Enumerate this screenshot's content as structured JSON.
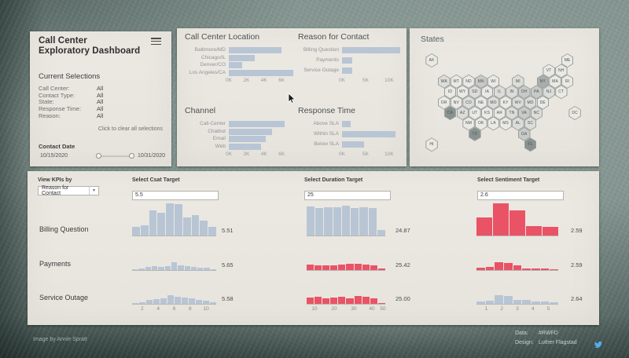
{
  "colors": {
    "bar_blue": "#b8c5d4",
    "bar_red": "#e95365",
    "twitter_blue": "#55acee",
    "hex_shades": [
      "#ebe9e4",
      "#dcdcd8",
      "#c8cac7",
      "#a9aeac",
      "#899290"
    ]
  },
  "left_panel": {
    "title_line1": "Call Center",
    "title_line2": "Exploratory Dashboard",
    "section_title": "Current Selections",
    "selections": [
      {
        "label": "Call Center:",
        "value": "All"
      },
      {
        "label": "Contact Type:",
        "value": "All"
      },
      {
        "label": "State:",
        "value": "All"
      },
      {
        "label": "Response Time:",
        "value": "All"
      },
      {
        "label": "Reason:",
        "value": "All"
      }
    ],
    "clear_text": "Click to clear all selections",
    "date_label": "Contact Date",
    "date_start": "10/15/2020",
    "date_end": "10/31/2020"
  },
  "filter_charts": [
    {
      "type": "bar",
      "title": "Call Center Location",
      "categories": [
        "Baltimore/MD",
        "Chicago/IL",
        "Denver/CO",
        "Los Angeles/CA"
      ],
      "values_k": [
        6.0,
        2.9,
        1.5,
        7.3
      ],
      "axis_max_k": 7.5,
      "ticks": [
        {
          "label": "0K",
          "value": 0
        },
        {
          "label": "2K",
          "value": 2
        },
        {
          "label": "4K",
          "value": 4
        },
        {
          "label": "6K",
          "value": 6
        }
      ]
    },
    {
      "type": "bar",
      "title": "Reason for Contact",
      "categories": [
        "Billing Question",
        "Payments",
        "Service Outage"
      ],
      "values_k": [
        12.4,
        2.2,
        2.2
      ],
      "axis_max_k": 13,
      "ticks": [
        {
          "label": "0K",
          "value": 0
        },
        {
          "label": "5K",
          "value": 5
        },
        {
          "label": "10K",
          "value": 10
        }
      ]
    },
    {
      "type": "bar",
      "title": "Channel",
      "categories": [
        "Call-Center",
        "Chatbot",
        "Email",
        "Web"
      ],
      "values_k": [
        6.3,
        4.9,
        4.2,
        3.7
      ],
      "axis_max_k": 7.5,
      "ticks": [
        {
          "label": "0K",
          "value": 0
        },
        {
          "label": "2K",
          "value": 2
        },
        {
          "label": "4K",
          "value": 4
        },
        {
          "label": "6K",
          "value": 6
        }
      ]
    },
    {
      "type": "bar",
      "title": "Response Time",
      "categories": [
        "Above SLA",
        "Within SLA",
        "Below SLA"
      ],
      "values_k": [
        1.8,
        11.4,
        4.6
      ],
      "axis_max_k": 13,
      "ticks": [
        {
          "label": "0K",
          "value": 0
        },
        {
          "label": "5K",
          "value": 5
        },
        {
          "label": "10K",
          "value": 10
        }
      ]
    }
  ],
  "states_map": {
    "title": "States",
    "hexes": [
      {
        "abbr": "AK",
        "col": 0,
        "row": 0,
        "shade": 0
      },
      {
        "abbr": "ME",
        "col": 11,
        "row": 0,
        "shade": 0
      },
      {
        "abbr": "VT",
        "col": 9.5,
        "row": 1,
        "shade": 0
      },
      {
        "abbr": "NH",
        "col": 10.5,
        "row": 1,
        "shade": 0
      },
      {
        "abbr": "WA",
        "col": 1,
        "row": 2,
        "shade": 1
      },
      {
        "abbr": "MT",
        "col": 2,
        "row": 2,
        "shade": 0
      },
      {
        "abbr": "ND",
        "col": 3,
        "row": 2,
        "shade": 0
      },
      {
        "abbr": "MN",
        "col": 4,
        "row": 2,
        "shade": 2
      },
      {
        "abbr": "WI",
        "col": 5,
        "row": 2,
        "shade": 0
      },
      {
        "abbr": "MI",
        "col": 7,
        "row": 2,
        "shade": 1
      },
      {
        "abbr": "NY",
        "col": 9,
        "row": 2,
        "shade": 3
      },
      {
        "abbr": "MA",
        "col": 10,
        "row": 2,
        "shade": 0
      },
      {
        "abbr": "RI",
        "col": 11,
        "row": 2,
        "shade": 0
      },
      {
        "abbr": "ID",
        "col": 1.5,
        "row": 3,
        "shade": 0
      },
      {
        "abbr": "WY",
        "col": 2.5,
        "row": 3,
        "shade": 0
      },
      {
        "abbr": "SD",
        "col": 3.5,
        "row": 3,
        "shade": 1
      },
      {
        "abbr": "IA",
        "col": 4.5,
        "row": 3,
        "shade": 0
      },
      {
        "abbr": "IL",
        "col": 5.5,
        "row": 3,
        "shade": 1
      },
      {
        "abbr": "IN",
        "col": 6.5,
        "row": 3,
        "shade": 1
      },
      {
        "abbr": "OH",
        "col": 7.5,
        "row": 3,
        "shade": 2
      },
      {
        "abbr": "PA",
        "col": 8.5,
        "row": 3,
        "shade": 2
      },
      {
        "abbr": "NJ",
        "col": 9.5,
        "row": 3,
        "shade": 1
      },
      {
        "abbr": "CT",
        "col": 10.5,
        "row": 3,
        "shade": 0
      },
      {
        "abbr": "OR",
        "col": 1,
        "row": 4,
        "shade": 0
      },
      {
        "abbr": "NV",
        "col": 2,
        "row": 4,
        "shade": 0
      },
      {
        "abbr": "CO",
        "col": 3,
        "row": 4,
        "shade": 1
      },
      {
        "abbr": "NE",
        "col": 4,
        "row": 4,
        "shade": 0
      },
      {
        "abbr": "MO",
        "col": 5,
        "row": 4,
        "shade": 1
      },
      {
        "abbr": "KY",
        "col": 6,
        "row": 4,
        "shade": 0
      },
      {
        "abbr": "WV",
        "col": 7,
        "row": 4,
        "shade": 1
      },
      {
        "abbr": "MD",
        "col": 8,
        "row": 4,
        "shade": 1
      },
      {
        "abbr": "DE",
        "col": 9,
        "row": 4,
        "shade": 0
      },
      {
        "abbr": "CA",
        "col": 1.5,
        "row": 5,
        "shade": 4
      },
      {
        "abbr": "AZ",
        "col": 2.5,
        "row": 5,
        "shade": 1
      },
      {
        "abbr": "UT",
        "col": 3.5,
        "row": 5,
        "shade": 0
      },
      {
        "abbr": "KS",
        "col": 4.5,
        "row": 5,
        "shade": 0
      },
      {
        "abbr": "AR",
        "col": 5.5,
        "row": 5,
        "shade": 0
      },
      {
        "abbr": "TN",
        "col": 6.5,
        "row": 5,
        "shade": 1
      },
      {
        "abbr": "VA",
        "col": 7.5,
        "row": 5,
        "shade": 2
      },
      {
        "abbr": "NC",
        "col": 8.5,
        "row": 5,
        "shade": 1
      },
      {
        "abbr": "DC",
        "col": 11.6,
        "row": 5,
        "shade": 0
      },
      {
        "abbr": "NM",
        "col": 3,
        "row": 6,
        "shade": 0
      },
      {
        "abbr": "OK",
        "col": 4,
        "row": 6,
        "shade": 0
      },
      {
        "abbr": "LA",
        "col": 5,
        "row": 6,
        "shade": 0
      },
      {
        "abbr": "MS",
        "col": 6,
        "row": 6,
        "shade": 0
      },
      {
        "abbr": "AL",
        "col": 7,
        "row": 6,
        "shade": 1
      },
      {
        "abbr": "SC",
        "col": 8,
        "row": 6,
        "shade": 1
      },
      {
        "abbr": "TX",
        "col": 3.5,
        "row": 7,
        "shade": 4
      },
      {
        "abbr": "GA",
        "col": 7.5,
        "row": 7,
        "shade": 2
      },
      {
        "abbr": "HI",
        "col": 0,
        "row": 8,
        "shade": 0
      },
      {
        "abbr": "FL",
        "col": 8,
        "row": 8,
        "shade": 4
      }
    ]
  },
  "kpi": {
    "view_by_label": "View KPIs by",
    "view_by_value": "Reason for Contact",
    "targets": [
      {
        "label": "Select Csat Target",
        "value": "5.5"
      },
      {
        "label": "Select Duration Target",
        "value": "25"
      },
      {
        "label": "Select Sentiment Target",
        "value": "2.6"
      }
    ],
    "axes": {
      "csat": [
        "2",
        "4",
        "6",
        "8",
        "10"
      ],
      "duration": [
        "10",
        "20",
        "30",
        "40",
        "50"
      ],
      "sentiment": [
        "1",
        "2",
        "3",
        "4",
        "5"
      ]
    },
    "rows": [
      {
        "label": "Billing Question",
        "csat": {
          "value": "5.51",
          "tone": "blue",
          "bars": [
            0.27,
            0.31,
            0.79,
            0.72,
            1.0,
            0.97,
            0.56,
            0.63,
            0.46,
            0.27
          ]
        },
        "duration": {
          "value": "24.87",
          "tone": "blue",
          "bars": [
            0.9,
            0.86,
            0.89,
            0.87,
            0.92,
            0.86,
            0.88,
            0.86,
            0.17
          ]
        },
        "sentiment": {
          "value": "2.59",
          "tone": "red",
          "bars": [
            0.55,
            1.0,
            0.77,
            0.3,
            0.27
          ]
        }
      },
      {
        "label": "Payments",
        "csat": {
          "value": "5.65",
          "tone": "blue",
          "bars": [
            0.15,
            0.2,
            0.45,
            0.5,
            0.45,
            0.55,
            1.0,
            0.6,
            0.5,
            0.45,
            0.35,
            0.3,
            0.15
          ]
        },
        "duration": {
          "value": "25.42",
          "tone": "red",
          "bars": [
            0.75,
            0.6,
            0.65,
            0.6,
            0.7,
            0.85,
            0.8,
            0.75,
            0.65,
            0.2
          ]
        },
        "sentiment": {
          "value": "2.59",
          "tone": "red",
          "bars": [
            0.35,
            0.45,
            1.0,
            0.95,
            0.65,
            0.25,
            0.22,
            0.2,
            0.15
          ]
        }
      },
      {
        "label": "Service Outage",
        "csat": {
          "value": "5.58",
          "tone": "blue",
          "bars": [
            0.12,
            0.2,
            0.5,
            0.55,
            0.65,
            1.0,
            0.8,
            0.75,
            0.6,
            0.45,
            0.4,
            0.15
          ]
        },
        "duration": {
          "value": "25.00",
          "tone": "red",
          "bars": [
            0.7,
            0.78,
            0.65,
            0.72,
            0.85,
            0.65,
            0.9,
            0.85,
            0.65,
            0.12
          ]
        },
        "sentiment": {
          "value": "2.64",
          "tone": "blue",
          "bars": [
            0.3,
            0.4,
            1.0,
            0.95,
            0.5,
            0.45,
            0.3,
            0.25,
            0.18
          ]
        }
      }
    ]
  },
  "footer": {
    "credit": "Image by Annie Spratt",
    "data_label": "Data:",
    "data_value": "#RWFD",
    "design_label": "Design:",
    "design_value": "Luther Flagstad"
  }
}
